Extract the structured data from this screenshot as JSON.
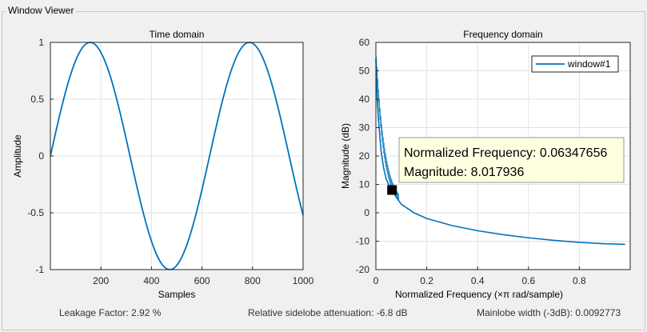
{
  "window": {
    "title": "Window Viewer"
  },
  "chart_data": [
    {
      "type": "line",
      "title": "Time domain",
      "xlabel": "Samples",
      "ylabel": "Amplitude",
      "xlim": [
        0,
        1000
      ],
      "ylim": [
        -1,
        1
      ],
      "x_ticks": [
        "200",
        "400",
        "600",
        "800",
        "1000"
      ],
      "y_ticks": [
        "1",
        "0.5",
        "0",
        "-0.5",
        "-1"
      ],
      "grid": true,
      "series": [
        {
          "name": "window#1",
          "function": "sine",
          "amplitude": 1,
          "period_samples": 630,
          "color": "#0072BD"
        }
      ]
    },
    {
      "type": "line",
      "title": "Frequency domain",
      "xlabel": "Normalized Frequency  (×π rad/sample)",
      "ylabel": "Magnitude (dB)",
      "xlim": [
        0,
        1
      ],
      "ylim": [
        -20,
        60
      ],
      "x_ticks": [
        "0",
        "0.2",
        "0.4",
        "0.6",
        "0.8"
      ],
      "y_ticks": [
        "60",
        "50",
        "40",
        "30",
        "20",
        "10",
        "0",
        "-10",
        "-20"
      ],
      "grid": true,
      "legend": {
        "label": "window#1",
        "placement": "top-right"
      },
      "series": [
        {
          "name": "window#1",
          "color": "#0072BD",
          "x": [
            0.0,
            0.002,
            0.005,
            0.01,
            0.02,
            0.03,
            0.04,
            0.05,
            0.0635,
            0.08,
            0.1,
            0.15,
            0.2,
            0.3,
            0.4,
            0.5,
            0.6,
            0.7,
            0.8,
            0.9,
            0.98
          ],
          "y": [
            54,
            50,
            40,
            33,
            22,
            16,
            12,
            10,
            8.0,
            5.5,
            3,
            0,
            -2,
            -4.5,
            -6.3,
            -7.7,
            -8.8,
            -9.7,
            -10.4,
            -10.9,
            -11.1
          ]
        }
      ],
      "datatip": {
        "x": 0.06347656,
        "y": 8.017936,
        "line1": "Normalized Frequency: 0.06347656",
        "line2": "Magnitude: 8.017936"
      }
    }
  ],
  "footer": {
    "leakage": "Leakage Factor: 2.92 %",
    "sidelobe": "Relative sidelobe attenuation: -6.8 dB",
    "mainlobe": "Mainlobe width (-3dB): 0.0092773"
  }
}
